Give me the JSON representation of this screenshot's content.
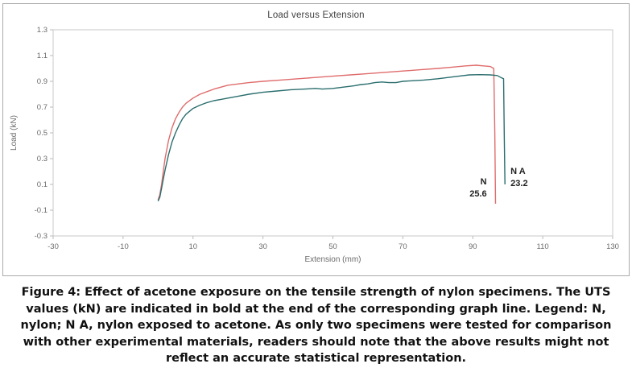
{
  "figure": {
    "caption": "Figure 4: Effect of acetone exposure on the tensile strength of nylon specimens. The UTS values (kN) are indicated in bold at the end of the corresponding graph line. Legend: N, nylon; N A, nylon exposed to acetone. As only two specimens were tested for comparison with other experimental materials, readers should note that the above results might not reflect an accurate statistical representation."
  },
  "chart_data": {
    "type": "line",
    "title": "Load versus Extension",
    "xlabel": "Extension (mm)",
    "ylabel": "Load (kN)",
    "xlim": [
      -30,
      130
    ],
    "ylim": [
      -0.3,
      1.3
    ],
    "xticks": [
      -30,
      -10,
      10,
      30,
      50,
      70,
      90,
      110,
      130
    ],
    "yticks": [
      -0.3,
      -0.1,
      0.1,
      0.3,
      0.5,
      0.7,
      0.9,
      1.1,
      1.3
    ],
    "grid": false,
    "legend_position": "none",
    "axis_text_color": "#6b6b6b",
    "plot_border_color": "#c8c8c8",
    "series": [
      {
        "name": "N",
        "color": "#e06c6c",
        "points": [
          [
            0,
            -0.02
          ],
          [
            0.5,
            0.02
          ],
          [
            1,
            0.1
          ],
          [
            1.5,
            0.2
          ],
          [
            2,
            0.3
          ],
          [
            3,
            0.44
          ],
          [
            4,
            0.54
          ],
          [
            5,
            0.61
          ],
          [
            6,
            0.66
          ],
          [
            7,
            0.7
          ],
          [
            8,
            0.73
          ],
          [
            10,
            0.77
          ],
          [
            12,
            0.8
          ],
          [
            14,
            0.82
          ],
          [
            16,
            0.84
          ],
          [
            18,
            0.855
          ],
          [
            20,
            0.87
          ],
          [
            23,
            0.88
          ],
          [
            26,
            0.89
          ],
          [
            30,
            0.9
          ],
          [
            35,
            0.91
          ],
          [
            40,
            0.92
          ],
          [
            45,
            0.93
          ],
          [
            50,
            0.94
          ],
          [
            55,
            0.95
          ],
          [
            60,
            0.96
          ],
          [
            65,
            0.97
          ],
          [
            70,
            0.98
          ],
          [
            75,
            0.99
          ],
          [
            80,
            1.0
          ],
          [
            84,
            1.01
          ],
          [
            88,
            1.02
          ],
          [
            91,
            1.025
          ],
          [
            93,
            1.02
          ],
          [
            95,
            1.015
          ],
          [
            96,
            1.0
          ],
          [
            96.3,
            0.5
          ],
          [
            96.5,
            -0.05
          ]
        ]
      },
      {
        "name": "N A",
        "color": "#2b6e6e",
        "points": [
          [
            0,
            -0.03
          ],
          [
            0.5,
            0.0
          ],
          [
            1,
            0.07
          ],
          [
            1.5,
            0.14
          ],
          [
            2,
            0.21
          ],
          [
            3,
            0.33
          ],
          [
            4,
            0.43
          ],
          [
            5,
            0.5
          ],
          [
            6,
            0.56
          ],
          [
            7,
            0.61
          ],
          [
            8,
            0.645
          ],
          [
            10,
            0.69
          ],
          [
            12,
            0.715
          ],
          [
            14,
            0.735
          ],
          [
            16,
            0.75
          ],
          [
            18,
            0.76
          ],
          [
            20,
            0.77
          ],
          [
            23,
            0.785
          ],
          [
            26,
            0.8
          ],
          [
            30,
            0.815
          ],
          [
            34,
            0.825
          ],
          [
            38,
            0.835
          ],
          [
            42,
            0.84
          ],
          [
            45,
            0.845
          ],
          [
            47,
            0.84
          ],
          [
            50,
            0.845
          ],
          [
            53,
            0.855
          ],
          [
            56,
            0.865
          ],
          [
            58,
            0.875
          ],
          [
            60,
            0.88
          ],
          [
            62,
            0.89
          ],
          [
            64,
            0.895
          ],
          [
            66,
            0.89
          ],
          [
            68,
            0.89
          ],
          [
            70,
            0.9
          ],
          [
            73,
            0.905
          ],
          [
            76,
            0.91
          ],
          [
            80,
            0.92
          ],
          [
            83,
            0.93
          ],
          [
            86,
            0.94
          ],
          [
            89,
            0.95
          ],
          [
            92,
            0.952
          ],
          [
            95,
            0.95
          ],
          [
            97,
            0.945
          ],
          [
            98,
            0.93
          ],
          [
            98.8,
            0.92
          ],
          [
            99,
            0.5
          ],
          [
            99.2,
            0.1
          ]
        ]
      }
    ],
    "annotations": [
      {
        "series": "N",
        "label": "N",
        "value": "25.6",
        "x": 94,
        "y": 0.1,
        "anchor": "end"
      },
      {
        "series": "N A",
        "label": "N A",
        "value": "23.2",
        "x": 100.8,
        "y": 0.18,
        "anchor": "start"
      }
    ]
  }
}
